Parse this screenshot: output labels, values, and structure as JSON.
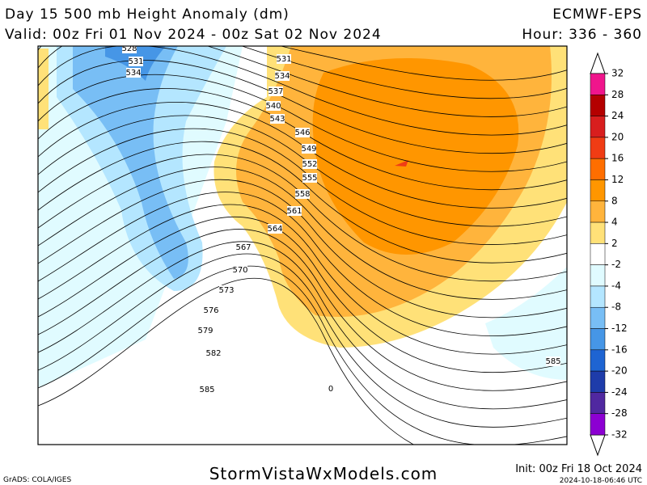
{
  "header": {
    "title": "Day 15 500 mb Height Anomaly (dm)",
    "model": "ECMWF-EPS",
    "valid": "Valid: 00z Fri 01 Nov 2024 - 00z Sat 02 Nov 2024",
    "hour": "Hour: 336 - 360"
  },
  "colorbar": {
    "levels": [
      32,
      28,
      24,
      20,
      16,
      12,
      8,
      4,
      2,
      -2,
      -4,
      -8,
      -12,
      -16,
      -20,
      -24,
      -28,
      -32
    ],
    "colors": [
      "#f0158c",
      "#b40000",
      "#d81e1e",
      "#f03c14",
      "#ff6e00",
      "#ff9600",
      "#ffb43c",
      "#ffe178",
      "#ffffff",
      "#e0fbff",
      "#b4e6ff",
      "#78bef5",
      "#4696e6",
      "#1e64d2",
      "#1e3caa",
      "#5028a0",
      "#8c00d2"
    ]
  },
  "contour_labels": [
    "528",
    "531",
    "534",
    "531",
    "534",
    "537",
    "540",
    "543",
    "546",
    "549",
    "552",
    "555",
    "558",
    "561",
    "564",
    "567",
    "570",
    "573",
    "576",
    "579",
    "582",
    "585",
    "585",
    "0"
  ],
  "footer": {
    "grads": "GrADS: COLA/IGES",
    "site": "StormVistaWxModels.com",
    "init": "Init: 00z Fri 18 Oct 2024",
    "stamp": "2024-10-18-06:46 UTC"
  }
}
